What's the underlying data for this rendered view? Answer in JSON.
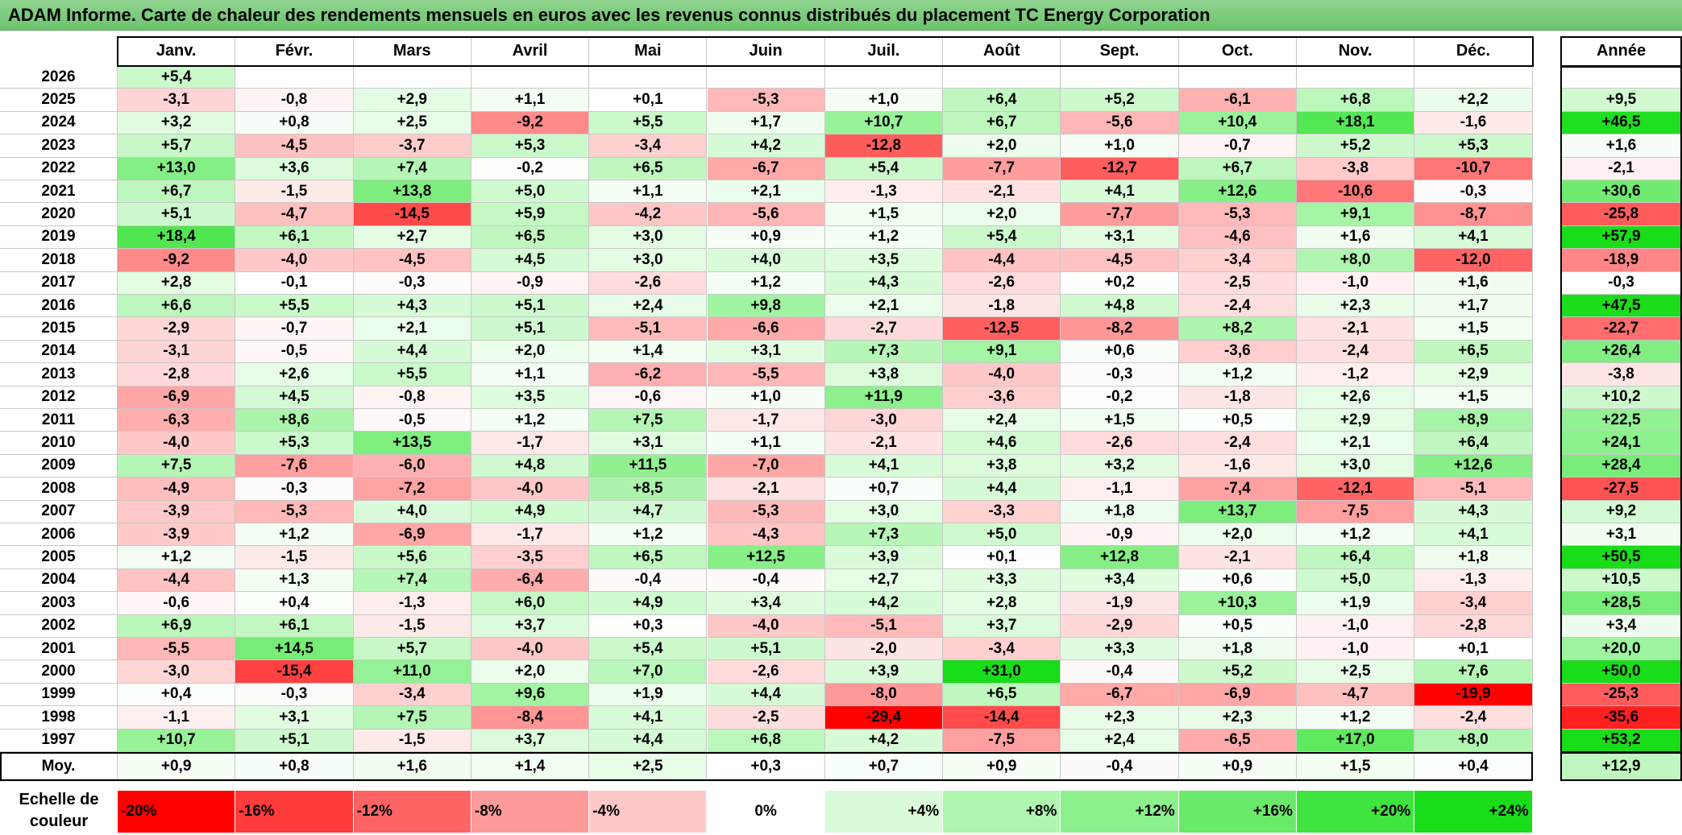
{
  "chart_data": {
    "type": "heatmap",
    "title": "ADAM Informe. Carte de chaleur des rendements mensuels en euros avec les revenus connus distribués du placement TC Energy Corporation",
    "columns": [
      "Janv.",
      "Févr.",
      "Mars",
      "Avril",
      "Mai",
      "Juin",
      "Juil.",
      "Août",
      "Sept.",
      "Oct.",
      "Nov.",
      "Déc."
    ],
    "annual_header": "Année",
    "rows": [
      {
        "year": "2026",
        "values": [
          "+5,4",
          "",
          "",
          "",
          "",
          "",
          "",
          "",
          "",
          "",
          "",
          ""
        ],
        "annual": ""
      },
      {
        "year": "2025",
        "values": [
          "-3,1",
          "-0,8",
          "+2,9",
          "+1,1",
          "+0,1",
          "-5,3",
          "+1,0",
          "+6,4",
          "+5,2",
          "-6,1",
          "+6,8",
          "+2,2"
        ],
        "annual": "+9,5"
      },
      {
        "year": "2024",
        "values": [
          "+3,2",
          "+0,8",
          "+2,5",
          "-9,2",
          "+5,5",
          "+1,7",
          "+10,7",
          "+6,7",
          "-5,6",
          "+10,4",
          "+18,1",
          "-1,6"
        ],
        "annual": "+46,5"
      },
      {
        "year": "2023",
        "values": [
          "+5,7",
          "-4,5",
          "-3,7",
          "+5,3",
          "-3,4",
          "+4,2",
          "-12,8",
          "+2,0",
          "+1,0",
          "-0,7",
          "+5,2",
          "+5,3"
        ],
        "annual": "+1,6"
      },
      {
        "year": "2022",
        "values": [
          "+13,0",
          "+3,6",
          "+7,4",
          "-0,2",
          "+6,5",
          "-6,7",
          "+5,4",
          "-7,7",
          "-12,7",
          "+6,7",
          "-3,8",
          "-10,7"
        ],
        "annual": "-2,1"
      },
      {
        "year": "2021",
        "values": [
          "+6,7",
          "-1,5",
          "+13,8",
          "+5,0",
          "+1,1",
          "+2,1",
          "-1,3",
          "-2,1",
          "+4,1",
          "+12,6",
          "-10,6",
          "-0,3"
        ],
        "annual": "+30,6"
      },
      {
        "year": "2020",
        "values": [
          "+5,1",
          "-4,7",
          "-14,5",
          "+5,9",
          "-4,2",
          "-5,6",
          "+1,5",
          "+2,0",
          "-7,7",
          "-5,3",
          "+9,1",
          "-8,7"
        ],
        "annual": "-25,8"
      },
      {
        "year": "2019",
        "values": [
          "+18,4",
          "+6,1",
          "+2,7",
          "+6,5",
          "+3,0",
          "+0,9",
          "+1,2",
          "+5,4",
          "+3,1",
          "-4,6",
          "+1,6",
          "+4,1"
        ],
        "annual": "+57,9"
      },
      {
        "year": "2018",
        "values": [
          "-9,2",
          "-4,0",
          "-4,5",
          "+4,5",
          "+3,0",
          "+4,0",
          "+3,5",
          "-4,4",
          "-4,5",
          "-3,4",
          "+8,0",
          "-12,0"
        ],
        "annual": "-18,9"
      },
      {
        "year": "2017",
        "values": [
          "+2,8",
          "-0,1",
          "-0,3",
          "-0,9",
          "-2,6",
          "+1,2",
          "+4,3",
          "-2,6",
          "+0,2",
          "-2,5",
          "-1,0",
          "+1,6"
        ],
        "annual": "-0,3"
      },
      {
        "year": "2016",
        "values": [
          "+6,6",
          "+5,5",
          "+4,3",
          "+5,1",
          "+2,4",
          "+9,8",
          "+2,1",
          "-1,8",
          "+4,8",
          "-2,4",
          "+2,3",
          "+1,7"
        ],
        "annual": "+47,5"
      },
      {
        "year": "2015",
        "values": [
          "-2,9",
          "-0,7",
          "+2,1",
          "+5,1",
          "-5,1",
          "-6,6",
          "-2,7",
          "-12,5",
          "-8,2",
          "+8,2",
          "-2,1",
          "+1,5"
        ],
        "annual": "-22,7"
      },
      {
        "year": "2014",
        "values": [
          "-3,1",
          "-0,5",
          "+4,4",
          "+2,0",
          "+1,4",
          "+3,1",
          "+7,3",
          "+9,1",
          "+0,6",
          "-3,6",
          "-2,4",
          "+6,5"
        ],
        "annual": "+26,4"
      },
      {
        "year": "2013",
        "values": [
          "-2,8",
          "+2,6",
          "+5,5",
          "+1,1",
          "-6,2",
          "-5,5",
          "+3,8",
          "-4,0",
          "-0,3",
          "+1,2",
          "-1,2",
          "+2,9"
        ],
        "annual": "-3,8"
      },
      {
        "year": "2012",
        "values": [
          "-6,9",
          "+4,5",
          "-0,8",
          "+3,5",
          "-0,6",
          "+1,0",
          "+11,9",
          "-3,6",
          "-0,2",
          "-1,8",
          "+2,6",
          "+1,5"
        ],
        "annual": "+10,2"
      },
      {
        "year": "2011",
        "values": [
          "-6,3",
          "+8,6",
          "-0,5",
          "+1,2",
          "+7,5",
          "-1,7",
          "-3,0",
          "+2,4",
          "+1,5",
          "+0,5",
          "+2,9",
          "+8,9"
        ],
        "annual": "+22,5"
      },
      {
        "year": "2010",
        "values": [
          "-4,0",
          "+5,3",
          "+13,5",
          "-1,7",
          "+3,1",
          "+1,1",
          "-2,1",
          "+4,6",
          "-2,6",
          "-2,4",
          "+2,1",
          "+6,4"
        ],
        "annual": "+24,1"
      },
      {
        "year": "2009",
        "values": [
          "+7,5",
          "-7,6",
          "-6,0",
          "+4,8",
          "+11,5",
          "-7,0",
          "+4,1",
          "+3,8",
          "+3,2",
          "-1,6",
          "+3,0",
          "+12,6"
        ],
        "annual": "+28,4"
      },
      {
        "year": "2008",
        "values": [
          "-4,9",
          "-0,3",
          "-7,2",
          "-4,0",
          "+8,5",
          "-2,1",
          "+0,7",
          "+4,4",
          "-1,1",
          "-7,4",
          "-12,1",
          "-5,1"
        ],
        "annual": "-27,5"
      },
      {
        "year": "2007",
        "values": [
          "-3,9",
          "-5,3",
          "+4,0",
          "+4,9",
          "+4,7",
          "-5,3",
          "+3,0",
          "-3,3",
          "+1,8",
          "+13,7",
          "-7,5",
          "+4,3"
        ],
        "annual": "+9,2"
      },
      {
        "year": "2006",
        "values": [
          "-3,9",
          "+1,2",
          "-6,9",
          "-1,7",
          "+1,2",
          "-4,3",
          "+7,3",
          "+5,0",
          "-0,9",
          "+2,0",
          "+1,2",
          "+4,1"
        ],
        "annual": "+3,1"
      },
      {
        "year": "2005",
        "values": [
          "+1,2",
          "-1,5",
          "+5,6",
          "-3,5",
          "+6,5",
          "+12,5",
          "+3,9",
          "+0,1",
          "+12,8",
          "-2,1",
          "+6,4",
          "+1,8"
        ],
        "annual": "+50,5"
      },
      {
        "year": "2004",
        "values": [
          "-4,4",
          "+1,3",
          "+7,4",
          "-6,4",
          "-0,4",
          "-0,4",
          "+2,7",
          "+3,3",
          "+3,4",
          "+0,6",
          "+5,0",
          "-1,3"
        ],
        "annual": "+10,5"
      },
      {
        "year": "2003",
        "values": [
          "-0,6",
          "+0,4",
          "-1,3",
          "+6,0",
          "+4,9",
          "+3,4",
          "+4,2",
          "+2,8",
          "-1,9",
          "+10,3",
          "+1,9",
          "-3,4"
        ],
        "annual": "+28,5"
      },
      {
        "year": "2002",
        "values": [
          "+6,9",
          "+6,1",
          "-1,5",
          "+3,7",
          "+0,3",
          "-4,0",
          "-5,1",
          "+3,7",
          "-2,9",
          "+0,5",
          "-1,0",
          "-2,8"
        ],
        "annual": "+3,4"
      },
      {
        "year": "2001",
        "values": [
          "-5,5",
          "+14,5",
          "+5,7",
          "-4,0",
          "+5,4",
          "+5,1",
          "-2,0",
          "-3,4",
          "+3,3",
          "+1,8",
          "-1,0",
          "+0,1"
        ],
        "annual": "+20,0"
      },
      {
        "year": "2000",
        "values": [
          "-3,0",
          "-15,4",
          "+11,0",
          "+2,0",
          "+7,0",
          "-2,6",
          "+3,9",
          "+31,0",
          "-0,4",
          "+5,2",
          "+2,5",
          "+7,6"
        ],
        "annual": "+50,0"
      },
      {
        "year": "1999",
        "values": [
          "+0,4",
          "-0,3",
          "-3,4",
          "+9,6",
          "+1,9",
          "+4,4",
          "-8,0",
          "+6,5",
          "-6,7",
          "-6,9",
          "-4,7",
          "-19,9"
        ],
        "annual": "-25,3"
      },
      {
        "year": "1998",
        "values": [
          "-1,1",
          "+3,1",
          "+7,5",
          "-8,4",
          "+4,1",
          "-2,5",
          "-29,4",
          "-14,4",
          "+2,3",
          "+2,3",
          "+1,2",
          "-2,4"
        ],
        "annual": "-35,6"
      },
      {
        "year": "1997",
        "values": [
          "+10,7",
          "+5,1",
          "-1,5",
          "+3,7",
          "+4,4",
          "+6,8",
          "+4,2",
          "-7,5",
          "+2,4",
          "-6,5",
          "+17,0",
          "+8,0"
        ],
        "annual": "+53,2"
      }
    ],
    "average": {
      "label": "Moy.",
      "values": [
        "+0,9",
        "+0,8",
        "+1,6",
        "+1,4",
        "+2,5",
        "+0,3",
        "+0,7",
        "+0,9",
        "-0,4",
        "+0,9",
        "+1,5",
        "+0,4"
      ],
      "annual": "+12,9"
    },
    "scale": {
      "label": "Echelle de couleur",
      "stops": [
        {
          "label": "-20%",
          "value": -20,
          "color": "#ff0000"
        },
        {
          "label": "-16%",
          "value": -16,
          "color": "#ff3b3b"
        },
        {
          "label": "-12%",
          "value": -12,
          "color": "#ff6464"
        },
        {
          "label": "-8%",
          "value": -8,
          "color": "#ff9a9a"
        },
        {
          "label": "-4%",
          "value": -4,
          "color": "#ffc8c8"
        },
        {
          "label": "0%",
          "value": 0,
          "color": "#ffffff"
        },
        {
          "label": "+4%",
          "value": 4,
          "color": "#d9fbd9"
        },
        {
          "label": "+8%",
          "value": 8,
          "color": "#b0f5b0"
        },
        {
          "label": "+12%",
          "value": 12,
          "color": "#8cf08c"
        },
        {
          "label": "+16%",
          "value": 16,
          "color": "#6aea6a"
        },
        {
          "label": "+20%",
          "value": 20,
          "color": "#3fe43f"
        },
        {
          "label": "+24%",
          "value": 24,
          "color": "#19dd19"
        }
      ]
    }
  }
}
